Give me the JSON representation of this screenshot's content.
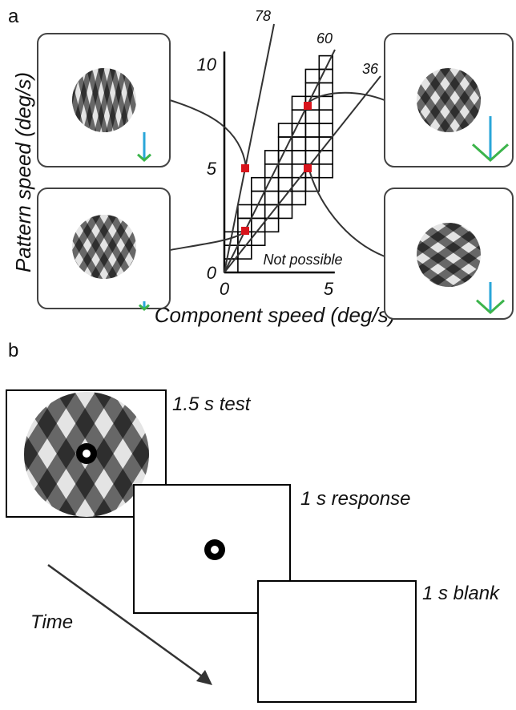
{
  "panel_a": {
    "label": "a",
    "y_label": "Pattern speed (deg/s)",
    "x_label": "Component speed (deg/s)",
    "x_ticks": [
      0,
      5
    ],
    "y_ticks": [
      0,
      5,
      10
    ],
    "line_labels": [
      78,
      60,
      36
    ],
    "region_label": "Not possible"
  },
  "panel_b": {
    "label": "b",
    "frames": [
      "1.5 s test",
      "1 s response",
      "1 s blank"
    ],
    "time_label": "Time"
  }
}
